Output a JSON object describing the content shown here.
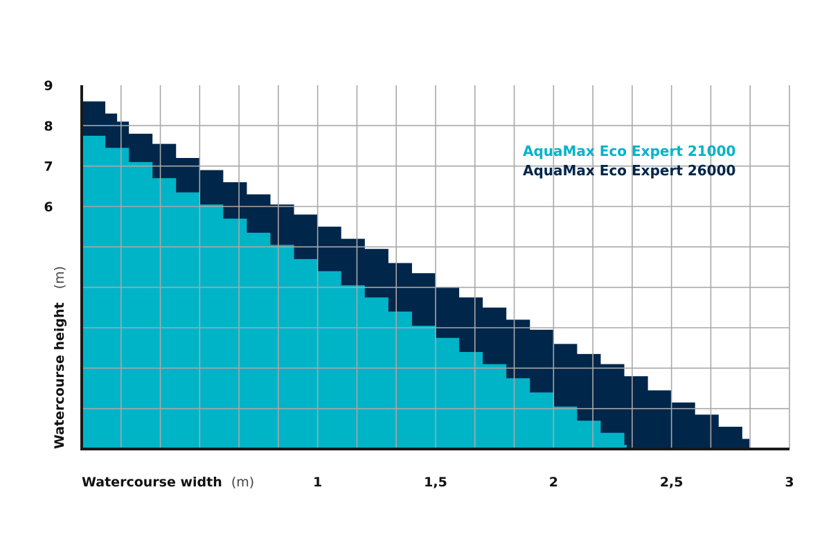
{
  "chart_data": {
    "type": "area",
    "xlabel": "Watercourse width",
    "xunit": "(m)",
    "ylabel": "Watercourse height",
    "yunit": "(m)",
    "xlim": [
      0,
      3
    ],
    "ylim": [
      0,
      9
    ],
    "x_ticks": [
      {
        "value": 1,
        "label": "1"
      },
      {
        "value": 1.5,
        "label": "1,5"
      },
      {
        "value": 2,
        "label": "2"
      },
      {
        "value": 2.5,
        "label": "2,5"
      },
      {
        "value": 3,
        "label": "3"
      }
    ],
    "y_ticks": [
      {
        "value": 6,
        "label": "6"
      },
      {
        "value": 7,
        "label": "7"
      },
      {
        "value": 8,
        "label": "8"
      },
      {
        "value": 9,
        "label": "9"
      }
    ],
    "grid": true,
    "legend_position": "top-right",
    "step_style": "staircase",
    "series": [
      {
        "name": "AquaMax Eco Expert 26000",
        "color": "#00264a",
        "x": [
          0,
          0.1,
          0.15,
          0.2,
          0.3,
          0.4,
          0.5,
          0.6,
          0.7,
          0.8,
          0.9,
          1.0,
          1.1,
          1.2,
          1.3,
          1.4,
          1.5,
          1.6,
          1.7,
          1.8,
          1.9,
          2.0,
          2.1,
          2.2,
          2.3,
          2.4,
          2.5,
          2.6,
          2.7,
          2.8,
          2.83
        ],
        "y": [
          8.6,
          8.3,
          8.1,
          7.8,
          7.55,
          7.2,
          6.9,
          6.6,
          6.3,
          6.05,
          5.8,
          5.5,
          5.2,
          4.95,
          4.6,
          4.35,
          4.0,
          3.75,
          3.5,
          3.2,
          2.95,
          2.6,
          2.35,
          2.1,
          1.8,
          1.45,
          1.15,
          0.85,
          0.55,
          0.25,
          0
        ]
      },
      {
        "name": "AquaMax Eco Expert 21000",
        "color": "#00b4c8",
        "x": [
          0,
          0.1,
          0.2,
          0.3,
          0.4,
          0.5,
          0.6,
          0.7,
          0.8,
          0.9,
          1.0,
          1.1,
          1.2,
          1.3,
          1.4,
          1.5,
          1.6,
          1.7,
          1.8,
          1.9,
          2.0,
          2.1,
          2.2,
          2.3,
          2.31
        ],
        "y": [
          7.75,
          7.45,
          7.1,
          6.7,
          6.35,
          6.05,
          5.7,
          5.35,
          5.05,
          4.7,
          4.4,
          4.05,
          3.75,
          3.4,
          3.05,
          2.75,
          2.4,
          2.1,
          1.75,
          1.4,
          1.05,
          0.7,
          0.4,
          0.1,
          0
        ]
      }
    ]
  }
}
